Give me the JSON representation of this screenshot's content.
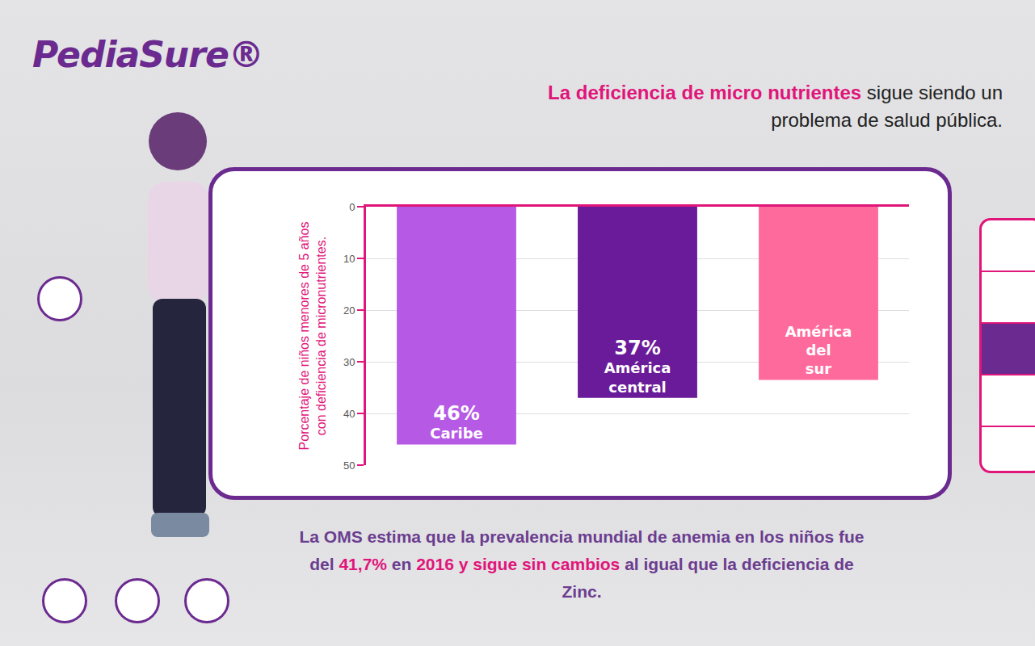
{
  "brand": "PediaSure®",
  "title_emphasis": "La deficiencia de micro nutrientes",
  "note": [
    {
      "text": "La OMS estima que la prevalencia mundial de anemia en los niños fue del ",
      "highlight": false
    },
    {
      "text": "41,7%",
      "highlight": true
    },
    {
      "text": " en ",
      "highlight": false
    },
    {
      "text": "2016 y sigue sin cambios",
      "highlight": true
    },
    {
      "text": " al igual que la deficiencia de Zinc.",
      "highlight": false
    }
  ],
  "chart_data": {
    "type": "bar",
    "title": "La deficiencia de micro nutrientes sigue siendo un problema de salud pública.",
    "y_label": [
      "Porcentaje de niños menores de 5 años",
      "con deficiencia de micronutrientes."
    ],
    "categories": [
      "Caribe",
      "América central",
      "América del sur"
    ],
    "values": [
      46,
      37,
      33.5
    ],
    "value_labels": [
      "46%",
      "37%",
      null
    ],
    "colors": [
      "#b65ae6",
      "#6a1b9a",
      "#ff6a9c"
    ],
    "ylim": [
      0,
      50
    ],
    "yticks": [
      0,
      10,
      20,
      30,
      40,
      50
    ],
    "grid": true,
    "data_labels": true,
    "tick_labels": "y"
  }
}
